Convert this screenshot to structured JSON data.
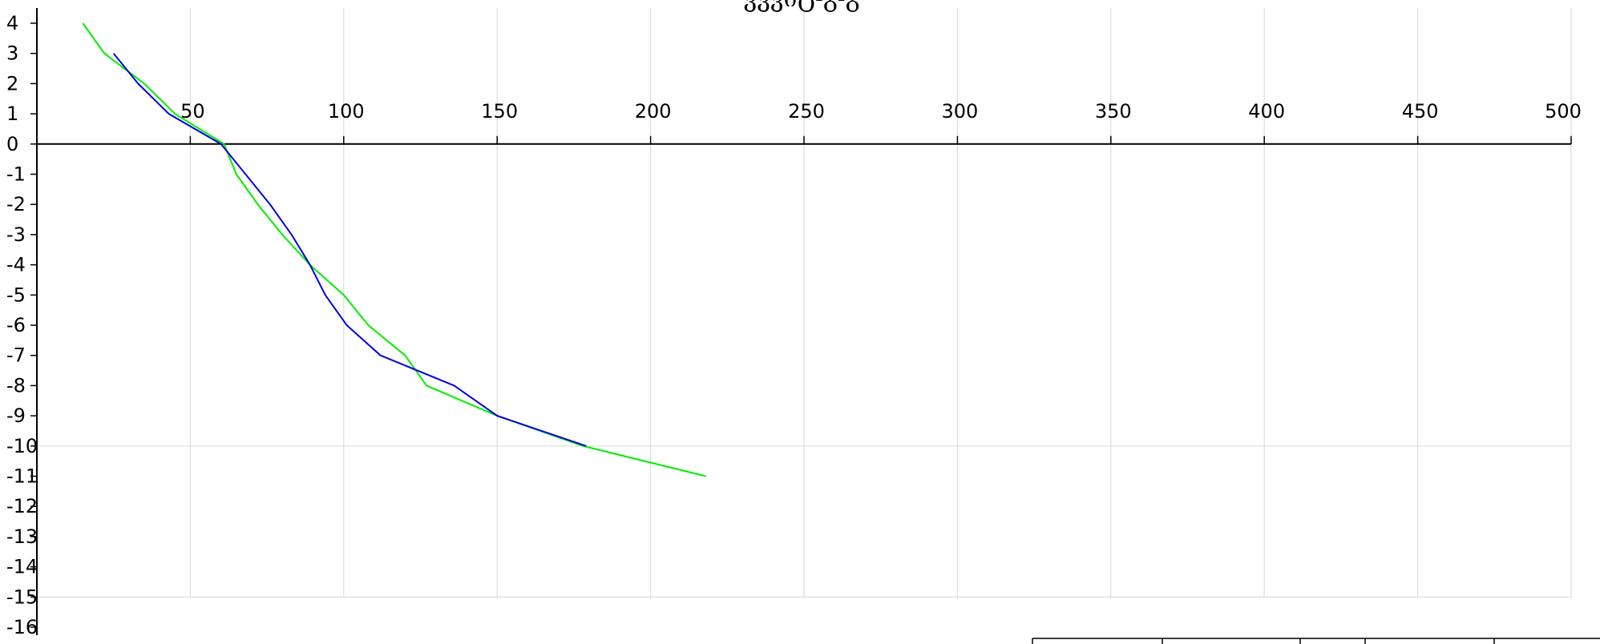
{
  "chart_data": {
    "type": "line",
    "title": "ვვვიტ-გ-გ",
    "xlabel": "",
    "ylabel": "",
    "xlim": [
      0,
      500
    ],
    "ylim": [
      -16,
      4
    ],
    "x_ticks": [
      50,
      100,
      150,
      200,
      250,
      300,
      350,
      400,
      450,
      500
    ],
    "y_ticks": [
      4,
      3,
      2,
      1,
      0,
      -1,
      -2,
      -3,
      -4,
      -5,
      -6,
      -7,
      -8,
      -9,
      -10,
      -11,
      -12,
      -13,
      -14,
      -15,
      -16
    ],
    "grid": {
      "x": true,
      "y": [
        -10,
        -15
      ]
    },
    "series": [
      {
        "color": "#00ee00",
        "points": [
          [
            15,
            4
          ],
          [
            22,
            3
          ],
          [
            35,
            2
          ],
          [
            45,
            1
          ],
          [
            61,
            0
          ],
          [
            65,
            -1
          ],
          [
            72,
            -2
          ],
          [
            80,
            -3
          ],
          [
            89,
            -4
          ],
          [
            100,
            -5
          ],
          [
            108,
            -6
          ],
          [
            120,
            -7
          ],
          [
            127,
            -8
          ],
          [
            150,
            -9
          ],
          [
            178,
            -10
          ],
          [
            218,
            -11
          ]
        ]
      },
      {
        "color": "#0000dd",
        "points": [
          [
            25,
            3
          ],
          [
            33,
            2
          ],
          [
            43,
            1
          ],
          [
            60,
            0
          ],
          [
            68,
            -1
          ],
          [
            76,
            -2
          ],
          [
            83,
            -3
          ],
          [
            89,
            -4
          ],
          [
            94,
            -5
          ],
          [
            101,
            -6
          ],
          [
            112,
            -7
          ],
          [
            136,
            -8
          ],
          [
            150,
            -9
          ],
          [
            179,
            -10
          ]
        ]
      }
    ]
  }
}
